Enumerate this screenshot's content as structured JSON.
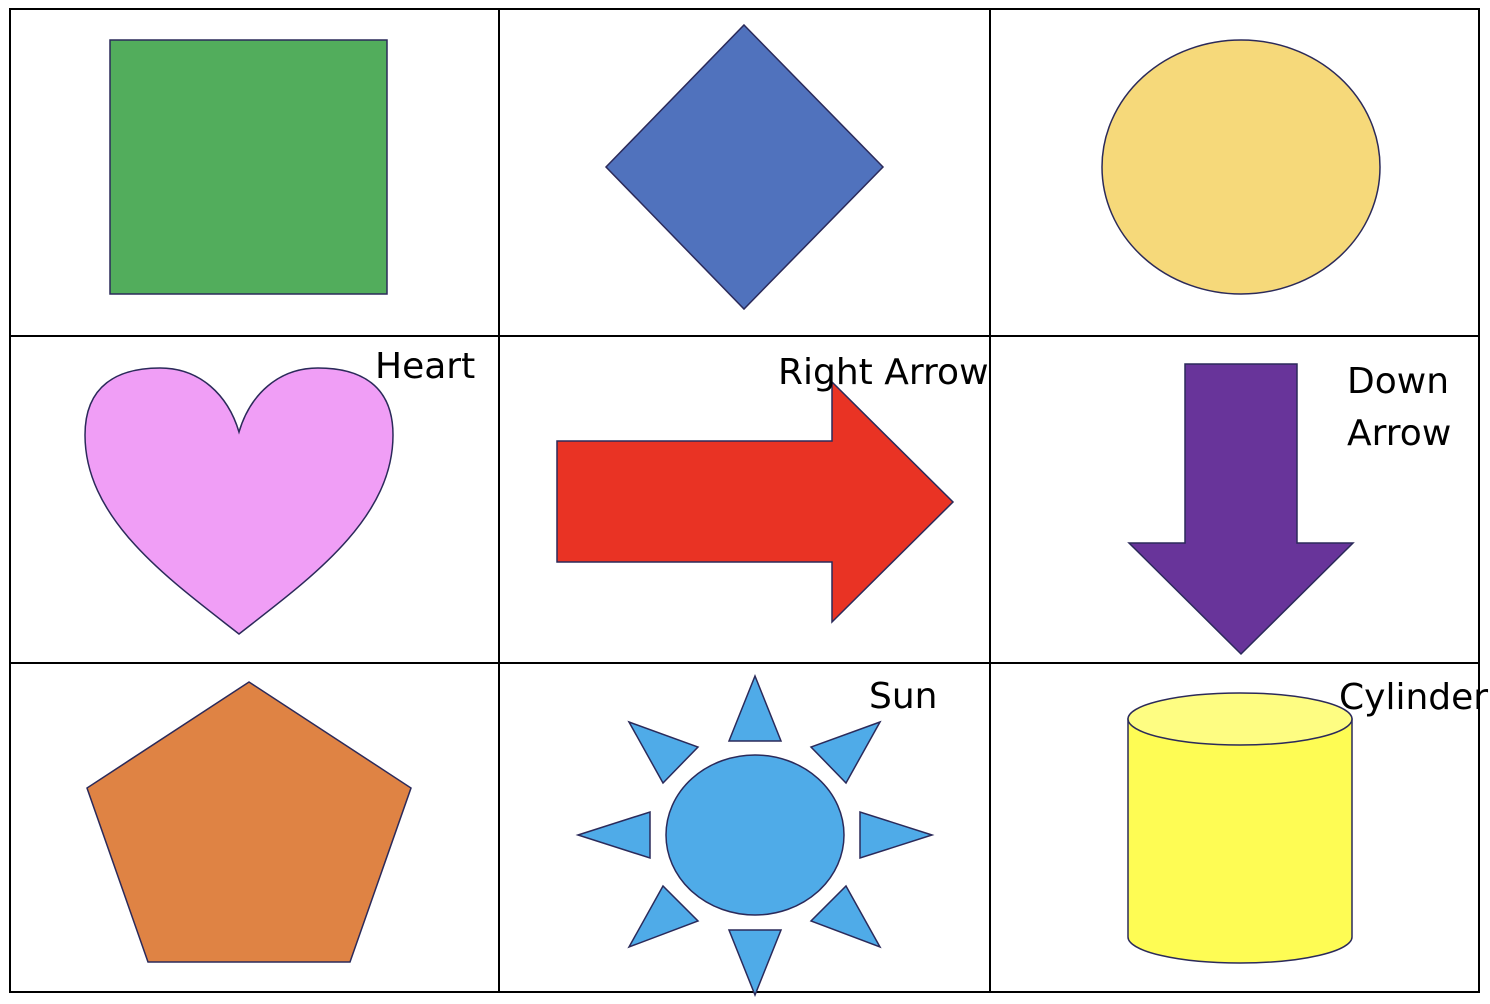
{
  "labels": {
    "heart": "Heart",
    "right_arrow": "Right Arrow",
    "down_arrow_line1": "Down",
    "down_arrow_line2": "Arrow",
    "sun": "Sun",
    "cylinder": "Cylinder"
  },
  "colors": {
    "grid": "#000000",
    "outline": "#2b2a5a",
    "square": "#52ad5c",
    "diamond": "#5072bd",
    "circle": "#f6d97a",
    "heart": "#f09ef6",
    "right_arrow": "#e93324",
    "down_arrow": "#68349a",
    "pentagon": "#df8344",
    "sun": "#4fabe8",
    "cylinder_body": "#fefc54",
    "cylinder_top": "#fefd82"
  }
}
